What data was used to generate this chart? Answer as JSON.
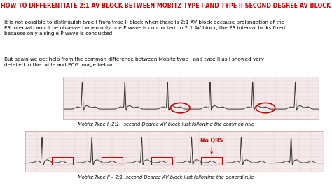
{
  "title": "HOW TO DIFFERENTIATE 2:1 AV BLOCK BETWEEN MOBITZ TYPE I AND TYPE II SECOND DEGREE AV BLOCK",
  "title_color": "#cc0000",
  "bg_color": "#ffffff",
  "body_text1": "It is not possible to distinguish type I from type II block when there is 2:1 AV block because prolongation of the\nPR interval cannot be observed when only one P wave is conducted. In 2:1 AV block, the PR interval looks fixed\nbecause only a single P wave is conducted.",
  "body_text2": "But again we get help from the common difference between Mobitz type I and type II as I showed very\ndetailed in the table and ECG image below.",
  "ecg1_label": "Mobitz Type I -2:1,  second Degree AV block just following the common rule",
  "ecg2_label": "Mobitz Type II – 2:1, second Degree AV block just following the general rule",
  "no_qrs_label": "No QRS",
  "text_color": "#000000",
  "grid_color": "#e8c8c8",
  "ecg_bg": "#f5eaea",
  "ecg_line_color": "#333333",
  "red_color": "#cc0000",
  "font_size_title": 5.8,
  "font_size_body": 5.2,
  "font_size_label": 4.8,
  "font_size_nqrs": 5.5
}
